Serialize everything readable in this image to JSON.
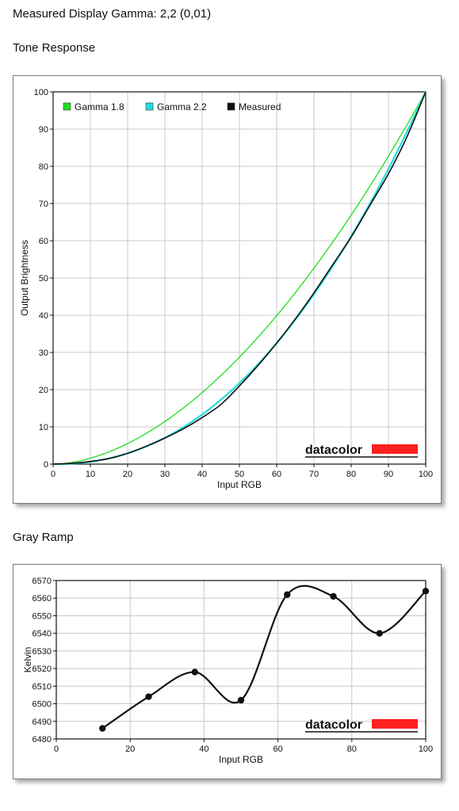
{
  "header": {
    "measured_label": "Measured Display Gamma: 2,2 (0,01)"
  },
  "brand": {
    "name": "datacolor",
    "bar_color": "#ff2020"
  },
  "chart_data": [
    {
      "type": "line",
      "title": "Tone Response",
      "xlabel": "Input RGB",
      "ylabel": "Output Brightness",
      "xlim": [
        0,
        100
      ],
      "ylim": [
        0,
        100
      ],
      "xticks": [
        0,
        10,
        20,
        30,
        40,
        50,
        60,
        70,
        80,
        90,
        100
      ],
      "yticks": [
        0,
        10,
        20,
        30,
        40,
        50,
        60,
        70,
        80,
        90,
        100
      ],
      "grid": true,
      "legend": "top-left",
      "series": [
        {
          "name": "Gamma 1.8",
          "color": "#22dd22",
          "gamma": 1.8
        },
        {
          "name": "Gamma 2.2",
          "color": "#22dddd",
          "gamma": 2.2
        },
        {
          "name": "Measured",
          "color": "#111111",
          "x": [
            0,
            5,
            10,
            15,
            20,
            25,
            30,
            35,
            40,
            45,
            50,
            55,
            60,
            65,
            70,
            75,
            80,
            85,
            90,
            95,
            100
          ],
          "y": [
            0,
            0.2,
            0.7,
            1.5,
            2.9,
            4.8,
            7.0,
            9.5,
            12.5,
            16.0,
            21.0,
            26.5,
            32.5,
            39.0,
            46.0,
            53.5,
            61.0,
            69.5,
            78.0,
            88.0,
            100
          ]
        }
      ]
    },
    {
      "type": "line",
      "title": "Gray Ramp",
      "xlabel": "Input RGB",
      "ylabel": "Kelvin",
      "xlim": [
        0,
        100
      ],
      "ylim": [
        6480,
        6570
      ],
      "xticks": [
        0,
        20,
        40,
        60,
        80,
        100
      ],
      "yticks": [
        6480,
        6490,
        6500,
        6510,
        6520,
        6530,
        6540,
        6550,
        6560,
        6570
      ],
      "grid": true,
      "series": [
        {
          "color": "#111111",
          "x": [
            12.5,
            25,
            37.5,
            50,
            62.5,
            75,
            87.5,
            100
          ],
          "y": [
            6486,
            6504,
            6518,
            6502,
            6562,
            6561,
            6540,
            6564
          ]
        }
      ]
    }
  ]
}
